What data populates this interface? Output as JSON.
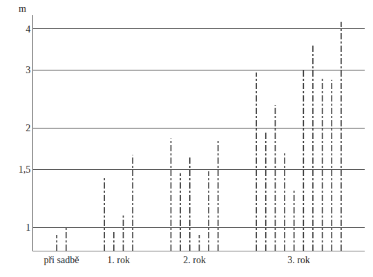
{
  "chart_data": {
    "type": "stem",
    "y_label": "m",
    "categories": [
      "při sadbě",
      "1. rok",
      "2. rok",
      "3. rok"
    ],
    "values": [
      [
        0.95,
        1.0
      ],
      [
        1.43,
        0.98,
        1.1,
        1.66
      ],
      [
        1.86,
        1.46,
        1.63,
        0.95,
        1.48,
        1.83
      ],
      [
        2.95,
        1.95,
        2.35,
        1.7,
        1.3,
        3.0,
        3.6,
        2.85,
        2.8,
        4.2
      ]
    ],
    "ylim": [
      0.85,
      4.4
    ],
    "yticks": [
      1,
      {
        "value": 1.5,
        "label": "1,5"
      },
      2,
      3,
      4
    ],
    "log": "y",
    "grid": true,
    "color": "#333333",
    "line_style": "dashdot"
  }
}
